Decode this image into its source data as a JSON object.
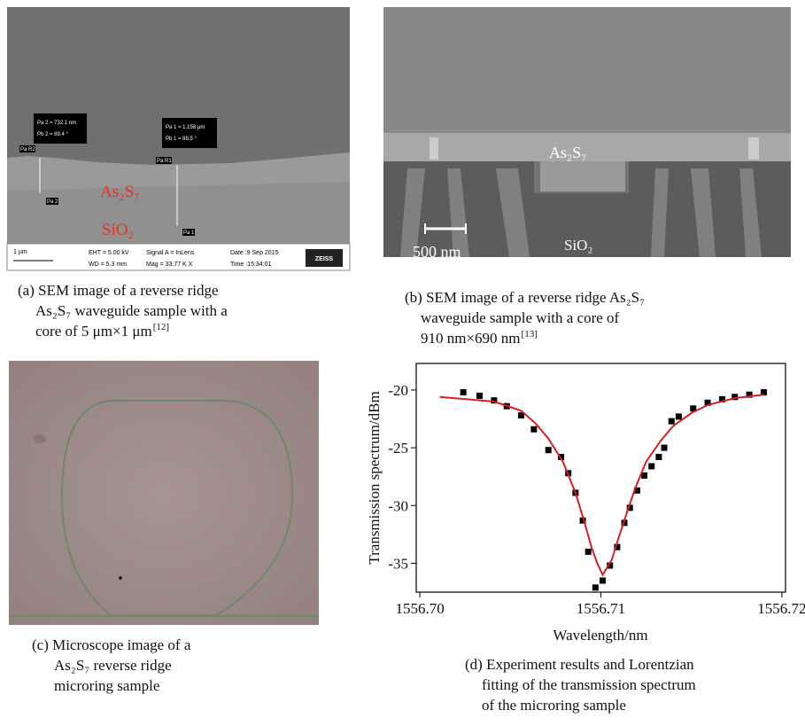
{
  "panel_a": {
    "measurements": [
      [
        "Pa 2 = 732.1 nm",
        "Pb 2 = 89.4 °"
      ],
      [
        "Pa 1 = 1.158 µm",
        "Pb 1 = 89.5 °"
      ]
    ],
    "markers": [
      "Pa R2",
      "Pa 2",
      "Pa R1",
      "Pa 1"
    ],
    "materials": [
      "As₂S₇",
      "SiO₂"
    ],
    "info_bar": {
      "scale": "1 µm",
      "eht": "EHT = 5.00 kV",
      "wd": "WD = 5.3 mm",
      "signal": "Signal A = InLens",
      "mag": "Mag = 33.77 K X",
      "date": "Date :9 Sep 2015",
      "time": "Time :15:34:01",
      "logo": "ZEISS"
    },
    "caption": [
      "(a) SEM image of a reverse ridge",
      "As₂S₇ waveguide sample with a",
      "core of 5 μm×1 μm"
    ],
    "caption_ref": "[12]"
  },
  "panel_b": {
    "core_label": "As₂S₇",
    "scale": "500 nm",
    "substrate_label": "SiO₂",
    "caption": [
      "(b) SEM image of a reverse ridge As₂S₇",
      "waveguide sample with a core of",
      "910 nm×690 nm"
    ],
    "caption_ref": "[13]"
  },
  "panel_c": {
    "caption": [
      "(c) Microscope image of a",
      "As₂S₇ reverse ridge",
      "microring sample"
    ]
  },
  "panel_d": {
    "caption": [
      "(d) Experiment results and Lorentzian",
      "fitting of the transmission spectrum",
      "of the microring sample"
    ]
  },
  "chart_data": {
    "type": "scatter",
    "xlabel": "Wavelength/nm",
    "ylabel": "Transmission spectrum/dBm",
    "xlim": [
      1556.6998,
      1556.7202
    ],
    "ylim": [
      -37.5,
      -17.7
    ],
    "xticks": [
      {
        "value": 1556.7,
        "label": "1556.70"
      },
      1556.71,
      1556.72
    ],
    "yticks": [
      -20,
      -25,
      -30,
      -35
    ],
    "series": [
      {
        "type": "scatter",
        "color": "#000000",
        "x": [
          1556.7024,
          1556.7033,
          1556.7041,
          1556.7048,
          1556.7056,
          1556.7063,
          1556.7071,
          1556.7078,
          1556.7082,
          1556.7086,
          1556.709,
          1556.7093,
          1556.7097,
          1556.7101,
          1556.7105,
          1556.7109,
          1556.7113,
          1556.7116,
          1556.712,
          1556.7124,
          1556.7128,
          1556.7132,
          1556.7135,
          1556.7139,
          1556.7143,
          1556.7151,
          1556.7159,
          1556.7167,
          1556.7174,
          1556.7182,
          1556.719
        ],
        "values": [
          -20.2,
          -20.5,
          -20.9,
          -21.4,
          -22.2,
          -23.4,
          -25.2,
          -25.8,
          -27.2,
          -28.9,
          -31.3,
          -34.0,
          -37.1,
          -36.5,
          -35.2,
          -33.6,
          -31.5,
          -30.2,
          -28.7,
          -27.4,
          -26.6,
          -25.8,
          -25.0,
          -22.7,
          -22.3,
          -21.6,
          -21.1,
          -20.8,
          -20.6,
          -20.4,
          -20.2
        ]
      },
      {
        "type": "line",
        "color": "#d42020",
        "x": [
          1556.7011,
          1556.7041,
          1556.7056,
          1556.7064,
          1556.7071,
          1556.7079,
          1556.7086,
          1556.7091,
          1556.7095,
          1556.7098,
          1556.7101,
          1556.7106,
          1556.711,
          1556.7114,
          1556.7119,
          1556.7125,
          1556.7133,
          1556.714,
          1556.715,
          1556.7159,
          1556.7174,
          1556.719
        ],
        "values": [
          -20.6,
          -21.0,
          -21.8,
          -22.9,
          -24.2,
          -26.2,
          -28.9,
          -31.5,
          -33.7,
          -35.0,
          -36.0,
          -34.7,
          -32.7,
          -30.8,
          -28.5,
          -26.2,
          -24.4,
          -23.1,
          -22.0,
          -21.3,
          -20.7,
          -20.4
        ]
      }
    ]
  }
}
